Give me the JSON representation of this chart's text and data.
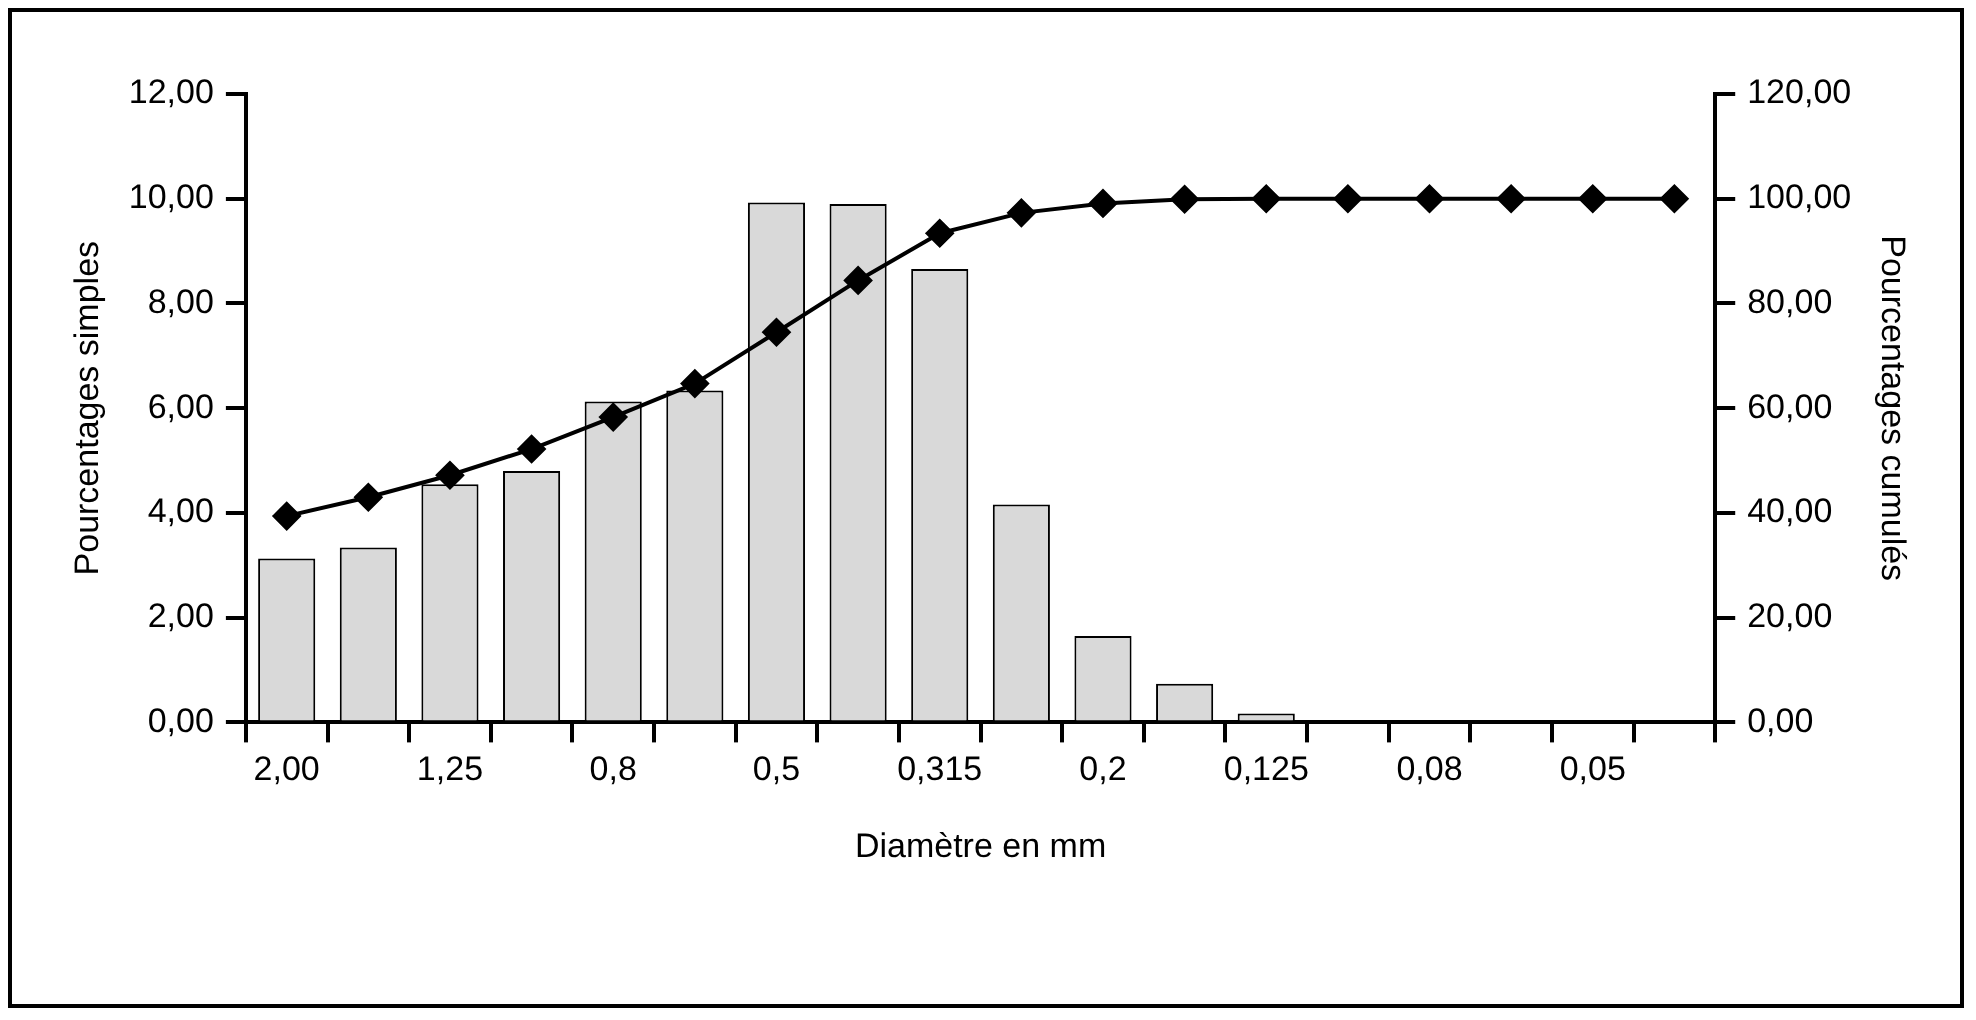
{
  "chart_data": {
    "type": "bar",
    "xlabel": "Diamètre en mm",
    "ylabel": "Pourcentages simples",
    "y2label": "Pourcentages cumulés",
    "categories": [
      "2,00",
      null,
      "1,25",
      null,
      "0,8",
      null,
      "0,5",
      null,
      "0,315",
      null,
      "0,2",
      null,
      "0,125",
      null,
      "0,08",
      null,
      "0,05",
      null
    ],
    "series": [
      {
        "color": "#d9d9d9",
        "values": [
          3.13,
          3.34,
          4.55,
          4.8,
          6.13,
          6.34,
          9.93,
          9.9,
          8.66,
          4.16,
          1.65,
          0.74,
          0.17,
          0,
          0,
          0,
          0,
          0
        ]
      },
      {
        "type": "line",
        "axis": "y2",
        "color": "#000000",
        "values": [
          39.4,
          43.0,
          47.2,
          52.2,
          58.3,
          64.7,
          74.5,
          84.4,
          93.4,
          97.3,
          99.1,
          99.9,
          100,
          100,
          100,
          100,
          100,
          100
        ]
      }
    ],
    "ylim": [
      0,
      12
    ],
    "yticks": [
      {
        "value": 0,
        "label": "0,00"
      },
      {
        "value": 2,
        "label": "2,00"
      },
      {
        "value": 4,
        "label": "4,00"
      },
      {
        "value": 6,
        "label": "6,00"
      },
      {
        "value": 8,
        "label": "8,00"
      },
      {
        "value": 10,
        "label": "10,00"
      },
      {
        "value": 12,
        "label": "12,00"
      }
    ],
    "y2lim": [
      0,
      120
    ],
    "y2ticks": [
      {
        "value": 0,
        "label": "0,00"
      },
      {
        "value": 20,
        "label": "20,00"
      },
      {
        "value": 40,
        "label": "40,00"
      },
      {
        "value": 60,
        "label": "60,00"
      },
      {
        "value": 80,
        "label": "80,00"
      },
      {
        "value": 100,
        "label": "100,00"
      },
      {
        "value": 120,
        "label": "120,00"
      }
    ],
    "grid": false,
    "legend": false,
    "marker": "diamond",
    "line_style": "solid"
  }
}
